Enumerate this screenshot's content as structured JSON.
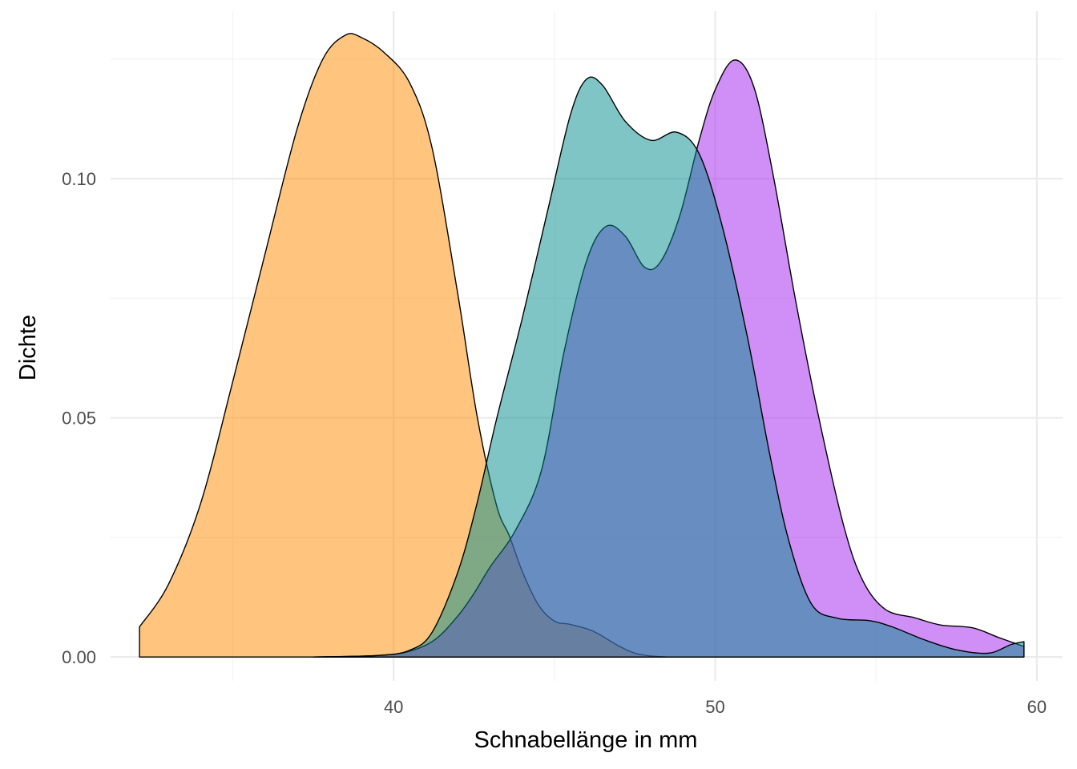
{
  "chart_data": {
    "type": "area",
    "subtype": "density",
    "xlabel": "Schnabellänge in mm",
    "ylabel": "Dichte",
    "xlim": [
      31.2,
      60.8
    ],
    "ylim": [
      -0.005,
      0.135
    ],
    "x_ticks": [
      40,
      50,
      60
    ],
    "x_tick_labels": [
      "40",
      "50",
      "60"
    ],
    "x_minor_ticks": [
      35,
      45,
      55
    ],
    "y_ticks": [
      0.0,
      0.05,
      0.1
    ],
    "y_tick_labels": [
      "0.00",
      "0.05",
      "0.10"
    ],
    "y_minor_ticks": [
      0.025,
      0.075,
      0.125
    ],
    "grid": true,
    "legend": "none",
    "fill_opacity": 0.5,
    "series": [
      {
        "color": "#ff8c00",
        "points": [
          [
            32.1,
            0.0063
          ],
          [
            33.0,
            0.0152
          ],
          [
            34.0,
            0.0321
          ],
          [
            35.0,
            0.0576
          ],
          [
            36.0,
            0.0842
          ],
          [
            37.0,
            0.1104
          ],
          [
            37.8,
            0.125
          ],
          [
            38.5,
            0.13
          ],
          [
            39.0,
            0.1295
          ],
          [
            39.7,
            0.1264
          ],
          [
            40.5,
            0.12
          ],
          [
            41.2,
            0.1063
          ],
          [
            42.0,
            0.0757
          ],
          [
            42.6,
            0.0502
          ],
          [
            43.2,
            0.0317
          ],
          [
            43.6,
            0.0253
          ],
          [
            44.0,
            0.0179
          ],
          [
            44.5,
            0.0109
          ],
          [
            45.0,
            0.0075
          ],
          [
            45.5,
            0.0068
          ],
          [
            46.2,
            0.0054
          ],
          [
            47.0,
            0.0023
          ],
          [
            47.5,
            0.0008
          ],
          [
            48.0,
            0.0002
          ],
          [
            48.5,
            0.0
          ]
        ]
      },
      {
        "color": "#a020f0",
        "points": [
          [
            37.5,
            0.0
          ],
          [
            39.5,
            0.0003
          ],
          [
            40.5,
            0.0012
          ],
          [
            41.3,
            0.0037
          ],
          [
            42.0,
            0.0086
          ],
          [
            42.5,
            0.0133
          ],
          [
            43.0,
            0.0188
          ],
          [
            43.8,
            0.0266
          ],
          [
            44.6,
            0.0391
          ],
          [
            45.3,
            0.0638
          ],
          [
            46.0,
            0.0828
          ],
          [
            46.6,
            0.09
          ],
          [
            47.2,
            0.088
          ],
          [
            47.8,
            0.0815
          ],
          [
            48.3,
            0.0826
          ],
          [
            48.9,
            0.0923
          ],
          [
            49.5,
            0.108
          ],
          [
            50.0,
            0.1186
          ],
          [
            50.6,
            0.1248
          ],
          [
            51.2,
            0.1192
          ],
          [
            51.8,
            0.1008
          ],
          [
            52.5,
            0.0745
          ],
          [
            53.2,
            0.0507
          ],
          [
            54.0,
            0.0273
          ],
          [
            54.6,
            0.0158
          ],
          [
            55.3,
            0.0099
          ],
          [
            56.2,
            0.0082
          ],
          [
            57.0,
            0.0067
          ],
          [
            58.0,
            0.0061
          ],
          [
            58.8,
            0.0041
          ],
          [
            59.6,
            0.0022
          ]
        ]
      },
      {
        "color": "#008b8b",
        "points": [
          [
            37.5,
            0.0
          ],
          [
            39.5,
            0.0003
          ],
          [
            40.5,
            0.0014
          ],
          [
            41.2,
            0.0052
          ],
          [
            42.0,
            0.0178
          ],
          [
            42.6,
            0.0323
          ],
          [
            43.2,
            0.0497
          ],
          [
            44.0,
            0.0708
          ],
          [
            44.8,
            0.0936
          ],
          [
            45.5,
            0.1134
          ],
          [
            46.0,
            0.1208
          ],
          [
            46.5,
            0.1195
          ],
          [
            47.2,
            0.112
          ],
          [
            48.0,
            0.108
          ],
          [
            48.8,
            0.1097
          ],
          [
            49.5,
            0.1052
          ],
          [
            50.2,
            0.0905
          ],
          [
            51.0,
            0.0669
          ],
          [
            51.7,
            0.0422
          ],
          [
            52.3,
            0.024
          ],
          [
            53.0,
            0.011
          ],
          [
            53.8,
            0.0081
          ],
          [
            54.8,
            0.0076
          ],
          [
            55.5,
            0.0063
          ],
          [
            56.5,
            0.0036
          ],
          [
            57.5,
            0.0015
          ],
          [
            58.5,
            0.0008
          ],
          [
            59.2,
            0.0026
          ],
          [
            59.6,
            0.0032
          ]
        ]
      }
    ]
  }
}
